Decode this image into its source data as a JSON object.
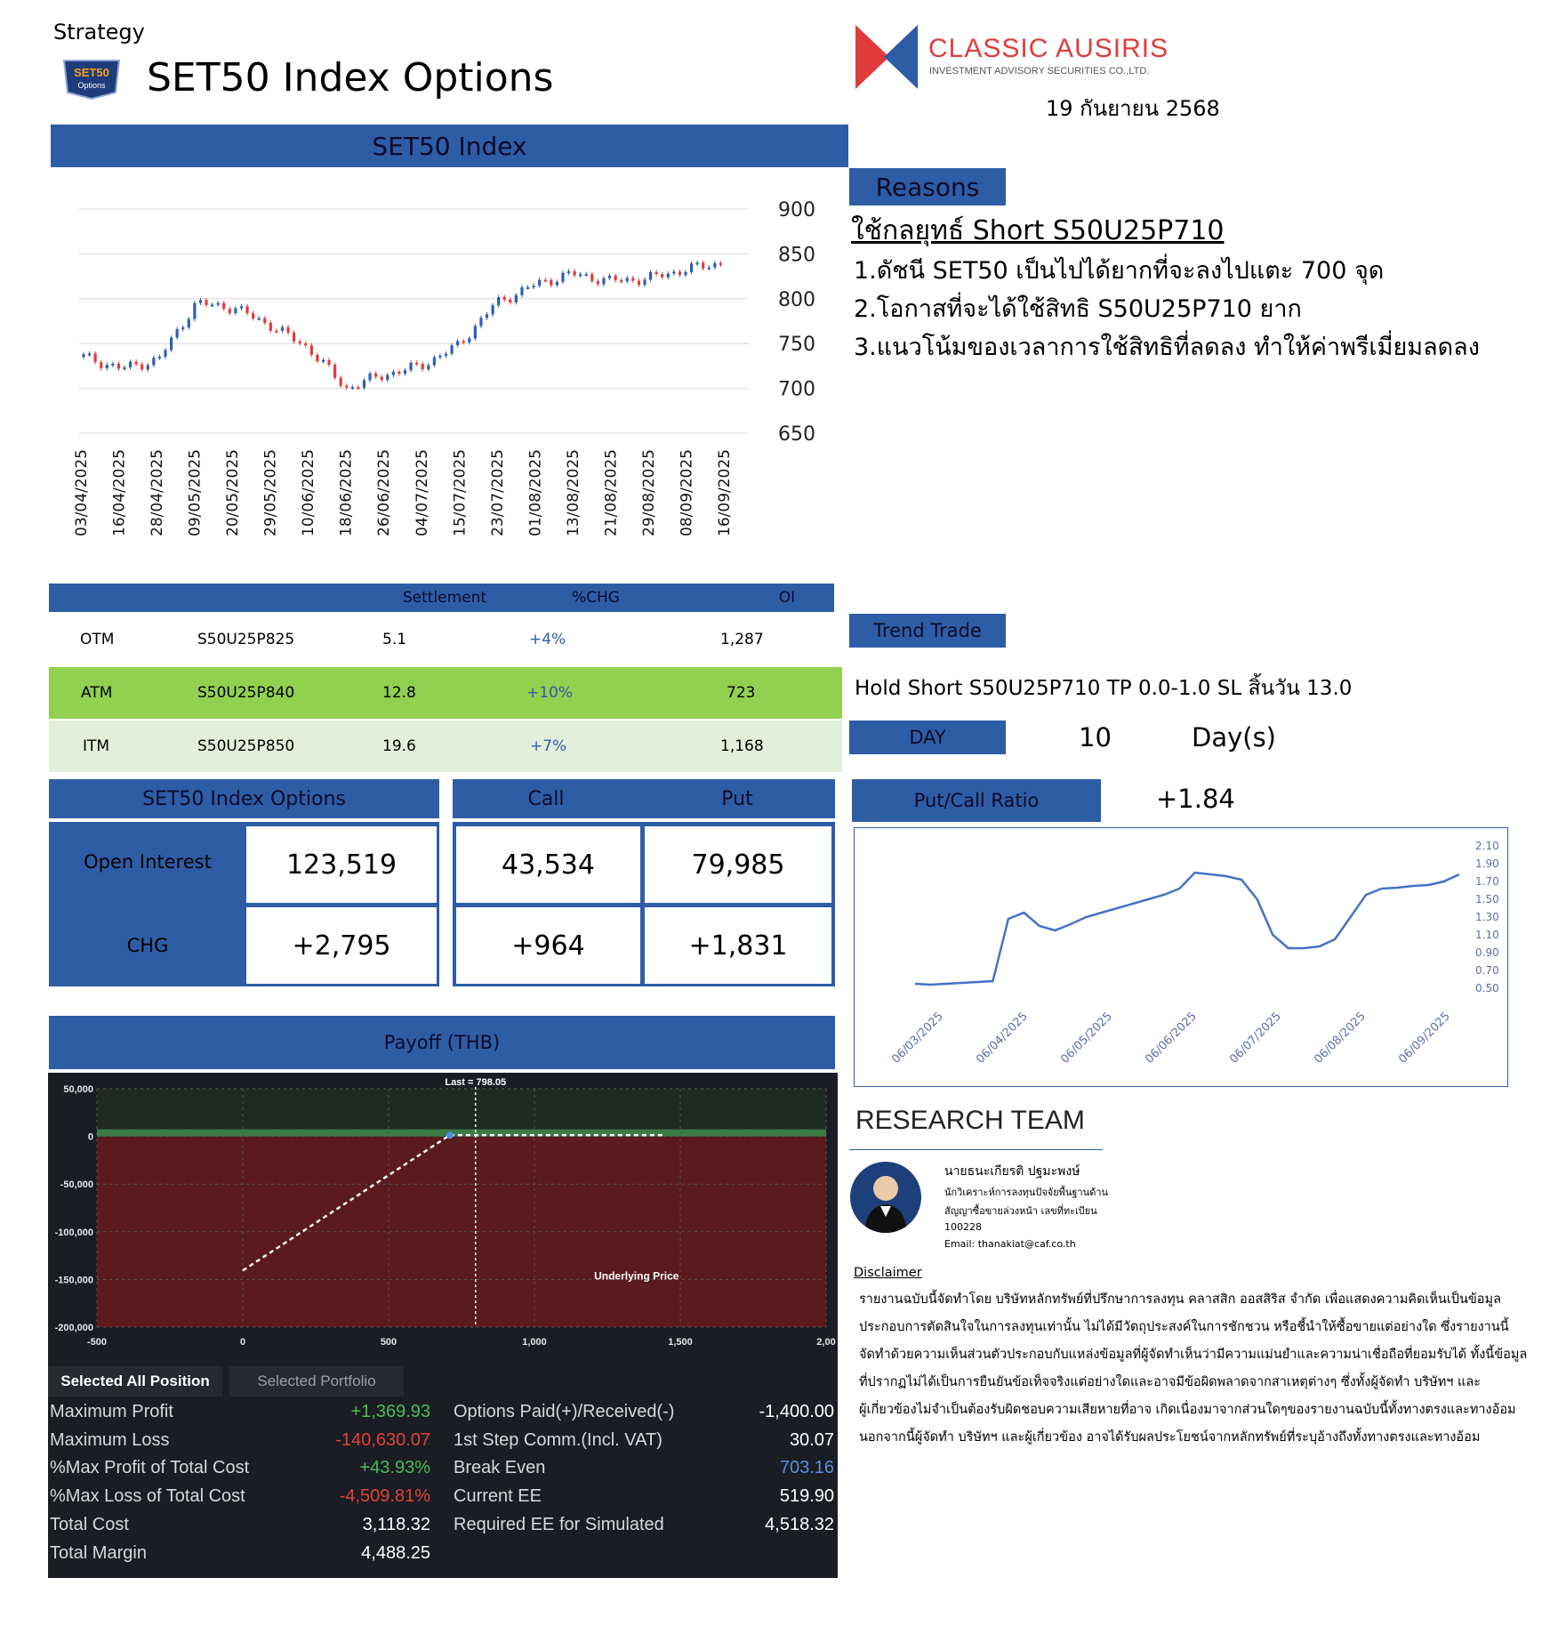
{
  "header": {
    "strategy_label": "Strategy",
    "title": "SET50 Index Options",
    "logo_badge": "SET50 Options TFEX",
    "company_name": "CLASSIC AUSIRIS",
    "company_sub": "INVESTMENT ADVISORY SECURITIES CO.,LTD.",
    "date": "19 กันยายน 2568"
  },
  "index_chart": {
    "title": "SET50 Index",
    "y_ticks": [
      "900",
      "850",
      "800",
      "750",
      "700",
      "650"
    ],
    "x_ticks": [
      "03/04/2025",
      "16/04/2025",
      "28/04/2025",
      "09/05/2025",
      "20/05/2025",
      "29/05/2025",
      "10/06/2025",
      "18/06/2025",
      "26/06/2025",
      "04/07/2025",
      "15/07/2025",
      "23/07/2025",
      "01/08/2025",
      "13/08/2025",
      "21/08/2025",
      "29/08/2025",
      "08/09/2025",
      "16/09/2025"
    ]
  },
  "chart_data": {
    "type": "line",
    "title": "SET50 Index",
    "categories": [
      "03/04/2025",
      "16/04/2025",
      "28/04/2025",
      "09/05/2025",
      "20/05/2025",
      "29/05/2025",
      "10/06/2025",
      "18/06/2025",
      "26/06/2025",
      "04/07/2025",
      "15/07/2025",
      "23/07/2025",
      "01/08/2025",
      "13/08/2025",
      "21/08/2025",
      "29/08/2025",
      "08/09/2025",
      "16/09/2025"
    ],
    "values": [
      735,
      722,
      732,
      795,
      790,
      770,
      745,
      700,
      715,
      725,
      748,
      795,
      815,
      828,
      820,
      822,
      832,
      840
    ],
    "ylim": [
      650,
      900
    ],
    "grid": true,
    "y_axis_side": "right"
  },
  "ratio_chart": {
    "y_ticks": [
      "2.10",
      "1.90",
      "1.70",
      "1.50",
      "1.30",
      "1.10",
      "0.90",
      "0.70",
      "0.50"
    ],
    "x_ticks": [
      "06/03/2025",
      "06/04/2025",
      "06/05/2025",
      "06/06/2025",
      "06/07/2025",
      "06/08/2025",
      "06/09/2025"
    ],
    "ylim": [
      0.5,
      2.1
    ],
    "values": [
      0.55,
      0.54,
      0.55,
      0.56,
      0.57,
      0.58,
      1.28,
      1.35,
      1.2,
      1.15,
      1.22,
      1.3,
      1.35,
      1.4,
      1.45,
      1.5,
      1.55,
      1.62,
      1.8,
      1.78,
      1.76,
      1.72,
      1.5,
      1.1,
      0.95,
      0.95,
      0.97,
      1.05,
      1.3,
      1.55,
      1.62,
      1.63,
      1.65,
      1.66,
      1.7,
      1.78
    ]
  },
  "reasons": {
    "label": "Reasons",
    "heading": "ใช้กลยุทธ์ Short S50U25P710",
    "items": [
      "1.ดัชนี SET50 เป็นไปได้ยากที่จะลงไปแตะ 700 จุด",
      "2.โอกาสที่จะได้ใช้สิทธิ S50U25P710 ยาก",
      "3.แนวโน้มของเวลาการใช้สิทธิที่ลดลง ทำให้ค่าพรีเมี่ยมลดลง"
    ]
  },
  "options_table": {
    "headers": [
      "Settlement",
      "%CHG",
      "OI"
    ],
    "rows": [
      {
        "moneyness": "OTM",
        "series": "S50U25P825",
        "settlement": "5.1",
        "chg": "+4%",
        "oi": "1,287"
      },
      {
        "moneyness": "ATM",
        "series": "S50U25P840",
        "settlement": "12.8",
        "chg": "+10%",
        "oi": "723"
      },
      {
        "moneyness": "ITM",
        "series": "S50U25P850",
        "settlement": "19.6",
        "chg": "+7%",
        "oi": "1,168"
      }
    ]
  },
  "oi_section": {
    "title": "SET50 Index Options",
    "call_label": "Call",
    "put_label": "Put",
    "oi_label": "Open Interest",
    "chg_label": "CHG",
    "oi_total": "123,519",
    "oi_call": "43,534",
    "oi_put": "79,985",
    "chg_total": "+2,795",
    "chg_call": "+964",
    "chg_put": "+1,831"
  },
  "trend": {
    "label": "Trend Trade",
    "text": "Hold Short S50U25P710 TP 0.0-1.0 SL สิ้นวัน 13.0",
    "day_label": "DAY",
    "day_value": "10",
    "day_unit": "Day(s)",
    "pcr_label": "Put/Call Ratio",
    "pcr_value": "+1.84"
  },
  "payoff": {
    "title": "Payoff (THB)",
    "last_label": "Last = 798.05",
    "underlying_label": "Underlying Price",
    "y_ticks": [
      "50,000",
      "0",
      "-50,000",
      "-100,000",
      "-150,000",
      "-200,000"
    ],
    "x_ticks": [
      "-500",
      "0",
      "500",
      "1,000",
      "1,500",
      "2,00"
    ],
    "tab_active": "Selected All Position",
    "tab_inactive": "Selected Portfolio",
    "stats_left": [
      {
        "label": "Maximum Profit",
        "value": "+1,369.93",
        "color": "#4cbb5a"
      },
      {
        "label": "Maximum Loss",
        "value": "-140,630.07",
        "color": "#e0423a"
      },
      {
        "label": "%Max Profit of Total Cost",
        "value": "+43.93%",
        "color": "#4cbb5a"
      },
      {
        "label": "%Max Loss of Total Cost",
        "value": "-4,509.81%",
        "color": "#e0423a"
      },
      {
        "label": "Total Cost",
        "value": "3,118.32",
        "color": "#ffffff"
      },
      {
        "label": "Total Margin",
        "value": "4,488.25",
        "color": "#ffffff"
      }
    ],
    "stats_right": [
      {
        "label": "Options Paid(+)/Received(-)",
        "value": "-1,400.00",
        "color": "#ffffff"
      },
      {
        "label": "1st Step Comm.(Incl. VAT)",
        "value": "30.07",
        "color": "#ffffff"
      },
      {
        "label": "Break Even",
        "value": "703.16",
        "color": "#5b8fe0"
      },
      {
        "label": "Current EE",
        "value": "519.90",
        "color": "#ffffff"
      },
      {
        "label": "Required EE for Simulated",
        "value": "4,518.32",
        "color": "#ffffff"
      }
    ]
  },
  "research": {
    "title": "RESEARCH TEAM",
    "name": "นายธนะเกียรติ ปฐมะพงษ์",
    "role1": "นักวิเคราะห์การลงทุนปัจจัยพื้นฐานด้าน",
    "role2": "สัญญาซื้อขายล่วงหน้า เลขที่ทะเบียน",
    "license": "100228",
    "email": "Email: thanakiat@caf.co.th",
    "disclaimer_label": "Disclaimer",
    "disclaimer_lines": [
      "รายงานฉบับนี้จัดทำโดย บริษัทหลักทรัพย์ที่ปรึกษาการลงทุน คลาสสิก ออสสิริส จำกัด เพื่อแสดงความคิดเห็นเป็นข้อมูล",
      "ประกอบการตัดสินใจในการลงทุนเท่านั้น ไม่ได้มีวัตถุประสงค์ในการชักชวน หรือชี้นำให้ซื้อขายแต่อย่างใด ซึ่งรายงานนี้",
      "จัดทำด้วยความเห็นส่วนตัวประกอบกับแหล่งข้อมูลที่ผู้จัดทำเห็นว่ามีความแม่นยำและความน่าเชื่อถือที่ยอมรับได้ ทั้งนี้ข้อมูล",
      "ที่ปรากฏไม่ได้เป็นการยืนยันข้อเท็จจริงแต่อย่างใดและอาจมีข้อผิดพลาดจากสาเหตุต่างๆ ซึ่งทั้งผู้จัดทำ บริษัทฯ และ",
      "ผู้เกี่ยวข้องไม่จำเป็นต้องรับผิดชอบความเสียหายที่อาจ เกิดเนื่องมาจากส่วนใดๆของรายงานฉบับนี้ทั้งทางตรงและทางอ้อม",
      "นอกจากนี้ผู้จัดทำ บริษัทฯ และผู้เกี่ยวข้อง อาจได้รับผลประโยชน์จากหลักทรัพย์ที่ระบุอ้างถึงทั้งทางตรงและทางอ้อม"
    ]
  },
  "colors": {
    "brand_blue": "#2e5da6",
    "atm_green": "#92d050",
    "itm_green": "#e2efda",
    "candle_up": "#2f5fb0",
    "candle_down": "#e03c3c"
  }
}
